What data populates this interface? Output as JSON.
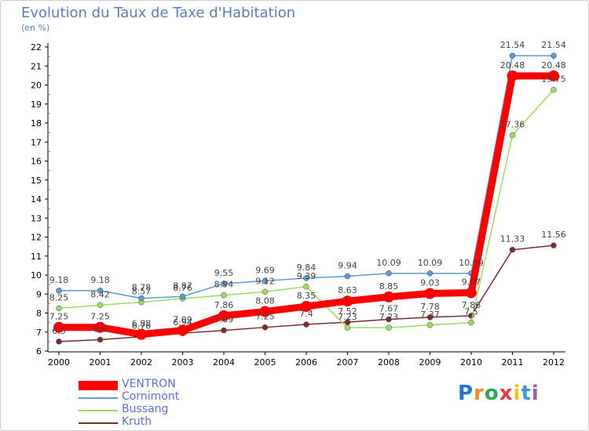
{
  "title": "Evolution du Taux de Taxe d'Habitation",
  "y_unit_label": "(en %)",
  "logo": {
    "letters": [
      "P",
      "r",
      "o",
      "x",
      "i",
      "t",
      "i"
    ],
    "colors": [
      "#1f77d4",
      "#ef8a1c",
      "#2ea44f",
      "#e23b3b",
      "#f0c419",
      "#3a9bdc",
      "#9b59b6"
    ]
  },
  "chart_data": {
    "type": "line",
    "title": "Evolution du Taux de Taxe d'Habitation",
    "ylabel": "(en %)",
    "xlabel": "",
    "x": [
      "2000",
      "2001",
      "2002",
      "2003",
      "2004",
      "2005",
      "2006",
      "2007",
      "2008",
      "2009",
      "2010",
      "2011",
      "2012"
    ],
    "ylim": [
      6,
      22
    ],
    "yticks": [
      6,
      7,
      8,
      9,
      10,
      11,
      12,
      13,
      14,
      15,
      16,
      17,
      18,
      19,
      20,
      21,
      22
    ],
    "grid": false,
    "legend_position": "bottom-left",
    "series": [
      {
        "name": "VENTRON",
        "color": "#ff0000",
        "values": [
          7.25,
          7.25,
          6.88,
          7.09,
          7.86,
          8.08,
          8.35,
          8.63,
          8.85,
          9.03,
          9.07,
          20.48,
          20.48
        ]
      },
      {
        "name": "Cornimont",
        "color": "#5b9bd5",
        "values": [
          9.18,
          9.18,
          8.78,
          8.87,
          9.55,
          9.69,
          9.84,
          9.94,
          10.09,
          10.09,
          10.09,
          21.54,
          21.54
        ]
      },
      {
        "name": "Bussang",
        "color": "#99dd66",
        "values": [
          8.25,
          8.42,
          8.57,
          8.76,
          8.94,
          9.12,
          9.39,
          7.23,
          7.23,
          7.37,
          7.5,
          17.36,
          19.75
        ]
      },
      {
        "name": "Kruth",
        "color": "#7b2c2c",
        "values": [
          6.5,
          6.6,
          6.76,
          6.94,
          7.09,
          7.25,
          7.4,
          7.52,
          7.67,
          7.78,
          7.86,
          11.33,
          11.56
        ]
      }
    ]
  }
}
